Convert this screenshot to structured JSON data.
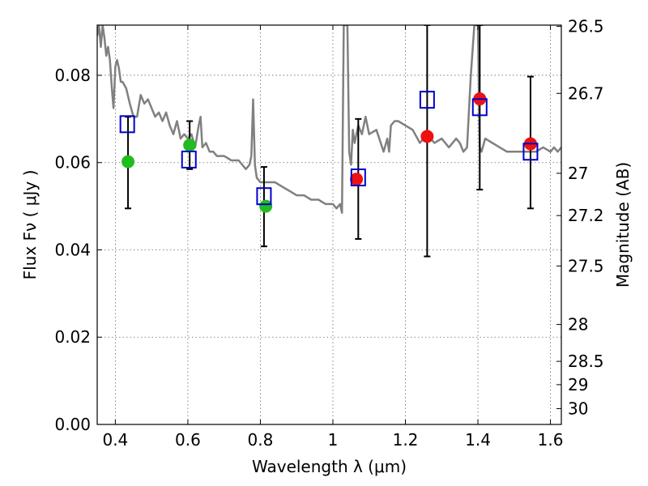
{
  "chart_data": {
    "type": "scatter",
    "title": "",
    "xlabel": "Wavelength  λ (μm)",
    "ylabel": "Flux  Fν  ( μJy )",
    "y2label": "Magnitude (AB)",
    "xlim": [
      0.35,
      1.63
    ],
    "ylim": [
      0.0,
      0.0915
    ],
    "grid": true,
    "x_ticks": [
      {
        "value": 0.4,
        "label": "0.4"
      },
      {
        "value": 0.6,
        "label": "0.6"
      },
      {
        "value": 0.8,
        "label": "0.8"
      },
      {
        "value": 1.0,
        "label": "1"
      },
      {
        "value": 1.2,
        "label": "1.2"
      },
      {
        "value": 1.4,
        "label": "1.4"
      },
      {
        "value": 1.6,
        "label": "1.6"
      }
    ],
    "y_ticks": [
      {
        "value": 0.0,
        "label": "0.00"
      },
      {
        "value": 0.02,
        "label": "0.02"
      },
      {
        "value": 0.04,
        "label": "0.04"
      },
      {
        "value": 0.06,
        "label": "0.06"
      },
      {
        "value": 0.08,
        "label": "0.08"
      }
    ],
    "y2_ticks": [
      {
        "mag": 26.5,
        "label": "26.5"
      },
      {
        "mag": 26.7,
        "label": "26.7"
      },
      {
        "mag": 27.0,
        "label": "27"
      },
      {
        "mag": 27.2,
        "label": "27.2"
      },
      {
        "mag": 27.5,
        "label": "27.5"
      },
      {
        "mag": 28.0,
        "label": "28"
      },
      {
        "mag": 28.5,
        "label": "28.5"
      },
      {
        "mag": 29.0,
        "label": "29"
      },
      {
        "mag": 30.0,
        "label": "30"
      }
    ],
    "colors": {
      "model": "#808080",
      "green": "#22bb22",
      "red": "#ee1111",
      "blue": "#0000cc",
      "errorbar": "#000000"
    },
    "model_sed": {
      "x": [
        0.35,
        0.355,
        0.36,
        0.365,
        0.37,
        0.375,
        0.38,
        0.385,
        0.39,
        0.395,
        0.4,
        0.405,
        0.41,
        0.415,
        0.42,
        0.43,
        0.44,
        0.45,
        0.46,
        0.47,
        0.48,
        0.49,
        0.5,
        0.51,
        0.52,
        0.53,
        0.54,
        0.55,
        0.56,
        0.57,
        0.58,
        0.59,
        0.6,
        0.61,
        0.62,
        0.63,
        0.635,
        0.64,
        0.65,
        0.66,
        0.67,
        0.68,
        0.7,
        0.72,
        0.74,
        0.76,
        0.77,
        0.775,
        0.78,
        0.785,
        0.79,
        0.8,
        0.82,
        0.84,
        0.86,
        0.88,
        0.9,
        0.92,
        0.94,
        0.96,
        0.98,
        1.0,
        1.01,
        1.02,
        1.025,
        1.03,
        1.035,
        1.04,
        1.045,
        1.05,
        1.055,
        1.06,
        1.07,
        1.08,
        1.09,
        1.1,
        1.12,
        1.14,
        1.15,
        1.155,
        1.16,
        1.17,
        1.18,
        1.2,
        1.22,
        1.24,
        1.26,
        1.28,
        1.3,
        1.32,
        1.34,
        1.35,
        1.36,
        1.37,
        1.38,
        1.39,
        1.4,
        1.405,
        1.41,
        1.42,
        1.44,
        1.46,
        1.48,
        1.5,
        1.52,
        1.54,
        1.56,
        1.58,
        1.6,
        1.61,
        1.62,
        1.63
      ],
      "y": [
        0.089,
        0.0915,
        0.0865,
        0.0915,
        0.0885,
        0.0845,
        0.0865,
        0.0835,
        0.0775,
        0.0725,
        0.082,
        0.0835,
        0.0815,
        0.0785,
        0.0785,
        0.077,
        0.0735,
        0.0705,
        0.0705,
        0.0755,
        0.0735,
        0.0745,
        0.0725,
        0.0705,
        0.0715,
        0.0695,
        0.0715,
        0.0685,
        0.0665,
        0.0695,
        0.0655,
        0.0665,
        0.0655,
        0.0665,
        0.0635,
        0.0685,
        0.0705,
        0.0635,
        0.0645,
        0.0625,
        0.0625,
        0.0615,
        0.0615,
        0.0605,
        0.0605,
        0.0585,
        0.0595,
        0.0615,
        0.0745,
        0.0595,
        0.0565,
        0.0555,
        0.0555,
        0.0555,
        0.0545,
        0.0535,
        0.0525,
        0.0525,
        0.0515,
        0.0515,
        0.0505,
        0.0505,
        0.0495,
        0.0505,
        0.0485,
        0.0915,
        0.0915,
        0.0915,
        0.0625,
        0.0595,
        0.0675,
        0.0645,
        0.0685,
        0.0665,
        0.0705,
        0.0665,
        0.0675,
        0.0625,
        0.0655,
        0.0625,
        0.0685,
        0.0695,
        0.0695,
        0.0685,
        0.0675,
        0.0645,
        0.0665,
        0.0645,
        0.0655,
        0.0635,
        0.0655,
        0.0645,
        0.0625,
        0.0635,
        0.0795,
        0.0915,
        0.0915,
        0.0635,
        0.0625,
        0.0655,
        0.0645,
        0.0635,
        0.0625,
        0.0625,
        0.0625,
        0.0625,
        0.0625,
        0.0635,
        0.0625,
        0.0635,
        0.0625,
        0.0635
      ]
    },
    "errorbars": [
      {
        "x": 0.435,
        "lo": 0.0495,
        "hi": 0.0705
      },
      {
        "x": 0.605,
        "lo": 0.0585,
        "hi": 0.0695
      },
      {
        "x": 0.81,
        "lo": 0.0408,
        "hi": 0.059
      },
      {
        "x": 1.07,
        "lo": 0.0425,
        "hi": 0.07
      },
      {
        "x": 1.26,
        "lo": 0.0385,
        "hi": 0.0915
      },
      {
        "x": 1.405,
        "lo": 0.0538,
        "hi": 0.0915
      },
      {
        "x": 1.545,
        "lo": 0.0495,
        "hi": 0.0797
      }
    ],
    "series": [
      {
        "marker": "green-circle",
        "points": [
          [
            0.435,
            0.0602
          ],
          [
            0.605,
            0.064
          ],
          [
            0.815,
            0.05
          ]
        ]
      },
      {
        "marker": "red-circle",
        "points": [
          [
            1.065,
            0.0562
          ],
          [
            1.26,
            0.066
          ],
          [
            1.405,
            0.0746
          ],
          [
            1.545,
            0.0643
          ]
        ]
      },
      {
        "marker": "blue-square",
        "points": [
          [
            0.433,
            0.0688
          ],
          [
            0.603,
            0.0607
          ],
          [
            0.81,
            0.0523
          ],
          [
            1.07,
            0.0566
          ],
          [
            1.26,
            0.0744
          ],
          [
            1.405,
            0.0727
          ],
          [
            1.545,
            0.0625
          ]
        ]
      }
    ]
  }
}
